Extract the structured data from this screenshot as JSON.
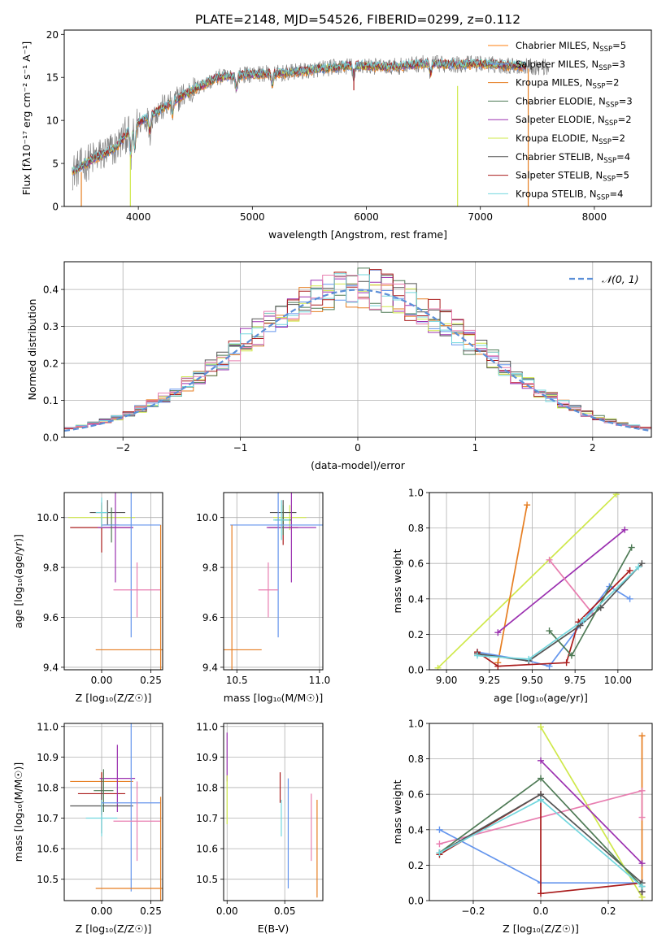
{
  "figure_title": "PLATE=2148, MJD=54526, FIBERID=0299, z=0.112",
  "colors": {
    "c1": "#ff7f0e",
    "c2": "#6495ed",
    "c3": "#e67e22",
    "c4": "#4e7a55",
    "c5": "#9b30b0",
    "c6": "#cfe84a",
    "c7": "#555555",
    "c8": "#aa1d1d",
    "c9": "#72d7de",
    "c10": "#e87eb0",
    "grey": "#7f7f7f"
  },
  "chart_data": [
    {
      "id": "spectrum",
      "type": "line",
      "xlabel": "wavelength [Angstrom, rest frame]",
      "ylabel": "Flux [fλ10⁻¹⁷ erg cm⁻² s⁻¹ A⁻¹]",
      "xlim": [
        3350,
        8500
      ],
      "ylim": [
        0,
        20.5
      ],
      "xticks": [
        4000,
        5000,
        6000,
        7000,
        8000
      ],
      "yticks": [
        0,
        5,
        10,
        15,
        20
      ],
      "legend": {
        "placement": "top-right",
        "entries": [
          {
            "label": "Chabrier MILES, N",
            "sub": "SSP",
            "tail": "=5",
            "color": "#ff7f0e"
          },
          {
            "label": "Salpeter MILES, N",
            "sub": "SSP",
            "tail": "=3",
            "color": "#6495ed"
          },
          {
            "label": "Kroupa MILES, N",
            "sub": "SSP",
            "tail": "=2",
            "color": "#e67e22"
          },
          {
            "label": "Chabrier ELODIE, N",
            "sub": "SSP",
            "tail": "=3",
            "color": "#4e7a55"
          },
          {
            "label": "Salpeter ELODIE, N",
            "sub": "SSP",
            "tail": "=2",
            "color": "#9b30b0"
          },
          {
            "label": "Kroupa ELODIE, N",
            "sub": "SSP",
            "tail": "=2",
            "color": "#cfe84a"
          },
          {
            "label": "Chabrier STELIB, N",
            "sub": "SSP",
            "tail": "=4",
            "color": "#555555"
          },
          {
            "label": "Salpeter STELIB, N",
            "sub": "SSP",
            "tail": "=5",
            "color": "#aa1d1d"
          },
          {
            "label": "Kroupa STELIB, N",
            "sub": "SSP",
            "tail": "=4",
            "color": "#72d7de"
          }
        ]
      },
      "continuum": {
        "x": [
          3420,
          3600,
          3800,
          3950,
          4100,
          4400,
          4700,
          5000,
          5300,
          5600,
          5900,
          6200,
          6500,
          6800,
          7000,
          7200,
          7400,
          7600
        ],
        "y": [
          4.0,
          5.5,
          6.8,
          9.3,
          10.5,
          13.0,
          15.0,
          15.4,
          15.5,
          16.0,
          16.4,
          16.2,
          16.6,
          16.5,
          16.6,
          16.4,
          16.3,
          16.2
        ]
      }
    },
    {
      "id": "residuals",
      "type": "histogram",
      "xlabel": "(data-model)/error",
      "ylabel": "Normed distribution",
      "xlim": [
        -2.5,
        2.5
      ],
      "ylim": [
        0,
        0.475
      ],
      "xticks": [
        -2,
        -1,
        0,
        1,
        2
      ],
      "yticks": [
        0.0,
        0.1,
        0.2,
        0.3,
        0.4
      ],
      "legend": {
        "placement": "top-right",
        "entries": [
          {
            "label": "𝒩(0, 1)",
            "color": "#5b8fd8"
          }
        ]
      }
    },
    {
      "id": "age_vs_z",
      "type": "scatter",
      "xlabel": "Z [log₁₀(Z/Z☉)]",
      "ylabel": "age  [log₁₀(age/yr)]",
      "xlim": [
        -0.19,
        0.31
      ],
      "ylim": [
        9.39,
        10.1
      ],
      "xticks": [
        0.0,
        0.25
      ],
      "xticklabels": [
        "0.00",
        "0.25"
      ],
      "yticks": [
        9.4,
        9.6,
        9.8,
        10.0
      ],
      "points": [
        {
          "x": 0.0,
          "y": 10.0,
          "xerr": 0.17,
          "yerr": 0.05,
          "color": "#cfe84a"
        },
        {
          "x": 0.03,
          "y": 10.02,
          "xerr": 0.09,
          "yerr": 0.05,
          "color": "#555555"
        },
        {
          "x": 0.0,
          "y": 9.96,
          "xerr": 0.16,
          "yerr": 0.1,
          "color": "#aa1d1d"
        },
        {
          "x": 0.07,
          "y": 9.96,
          "xerr": 0.09,
          "yerr": 0.22,
          "color": "#9b30b0"
        },
        {
          "x": 0.05,
          "y": 9.97,
          "xerr": 0.04,
          "yerr": 0.07,
          "color": "#4e7a55"
        },
        {
          "x": 0.0,
          "y": 10.02,
          "xerr": 0.03,
          "yerr": 0.06,
          "color": "#72d7de"
        },
        {
          "x": 0.15,
          "y": 9.97,
          "xerr": 0.15,
          "yerr": 0.45,
          "color": "#6495ed"
        },
        {
          "x": 0.18,
          "y": 9.71,
          "xerr": 0.12,
          "yerr": 0.11,
          "color": "#e87eb0"
        },
        {
          "x": 0.3,
          "y": 9.47,
          "xerr": 0.33,
          "yerr": 0.5,
          "color": "#e67e22"
        }
      ]
    },
    {
      "id": "age_vs_mass",
      "type": "scatter",
      "xlabel": "mass [log₁₀(M/M☉)]",
      "ylabel": "",
      "xlim": [
        10.42,
        11.02
      ],
      "ylim": [
        9.39,
        10.1
      ],
      "xticks": [
        10.5,
        11.0
      ],
      "xticklabels": [
        "10.5",
        "11.0"
      ],
      "yticks": [
        9.4,
        9.6,
        9.8,
        10.0
      ],
      "points": [
        {
          "x": 10.82,
          "y": 10.0,
          "xerr": 0.1,
          "yerr": 0.05,
          "color": "#cfe84a"
        },
        {
          "x": 10.78,
          "y": 10.02,
          "xerr": 0.08,
          "yerr": 0.05,
          "color": "#555555"
        },
        {
          "x": 10.78,
          "y": 9.96,
          "xerr": 0.09,
          "yerr": 0.07,
          "color": "#aa1d1d"
        },
        {
          "x": 10.83,
          "y": 9.96,
          "xerr": 0.15,
          "yerr": 0.22,
          "color": "#9b30b0"
        },
        {
          "x": 10.78,
          "y": 9.99,
          "xerr": 0.05,
          "yerr": 0.06,
          "color": "#4e7a55"
        },
        {
          "x": 10.77,
          "y": 9.99,
          "xerr": 0.05,
          "yerr": 0.08,
          "color": "#72d7de"
        },
        {
          "x": 10.75,
          "y": 9.97,
          "xerr": 0.29,
          "yerr": 0.45,
          "color": "#6495ed"
        },
        {
          "x": 10.69,
          "y": 9.71,
          "xerr": 0.06,
          "yerr": 0.11,
          "color": "#e87eb0"
        },
        {
          "x": 10.47,
          "y": 9.47,
          "xerr": 0.18,
          "yerr": 0.5,
          "color": "#e67e22"
        }
      ]
    },
    {
      "id": "weight_vs_age",
      "type": "line",
      "xlabel": "age  [log₁₀(age/yr)]",
      "ylabel": "mass weight",
      "xlim": [
        8.9,
        10.2
      ],
      "ylim": [
        0,
        1.0
      ],
      "xticks": [
        9.0,
        9.25,
        9.5,
        9.75,
        10.0
      ],
      "xticklabels": [
        "9.00",
        "9.25",
        "9.50",
        "9.75",
        "10.00"
      ],
      "yticks": [
        0.0,
        0.2,
        0.4,
        0.6,
        0.8,
        1.0
      ],
      "series": [
        {
          "color": "#cfe84a",
          "points": [
            [
              8.95,
              0.01
            ],
            [
              9.99,
              0.99
            ]
          ]
        },
        {
          "color": "#e67e22",
          "points": [
            [
              9.3,
              0.04
            ],
            [
              9.47,
              0.93
            ]
          ]
        },
        {
          "color": "#9b30b0",
          "points": [
            [
              9.3,
              0.21
            ],
            [
              10.04,
              0.79
            ]
          ]
        },
        {
          "color": "#e87eb0",
          "points": [
            [
              9.6,
              0.62
            ],
            [
              9.85,
              0.32
            ]
          ]
        },
        {
          "color": "#6495ed",
          "points": [
            [
              9.18,
              0.1
            ],
            [
              9.48,
              0.05
            ],
            [
              9.6,
              0.02
            ],
            [
              9.95,
              0.47
            ],
            [
              10.07,
              0.4
            ]
          ]
        },
        {
          "color": "#aa1d1d",
          "points": [
            [
              9.18,
              0.1
            ],
            [
              9.3,
              0.02
            ],
            [
              9.7,
              0.04
            ],
            [
              9.77,
              0.27
            ],
            [
              10.07,
              0.56
            ]
          ]
        },
        {
          "color": "#555555",
          "points": [
            [
              9.18,
              0.09
            ],
            [
              9.48,
              0.05
            ],
            [
              9.78,
              0.25
            ],
            [
              9.9,
              0.35
            ],
            [
              10.14,
              0.6
            ]
          ]
        },
        {
          "color": "#4e7a55",
          "points": [
            [
              9.6,
              0.22
            ],
            [
              9.73,
              0.08
            ],
            [
              10.08,
              0.69
            ]
          ]
        },
        {
          "color": "#72d7de",
          "points": [
            [
              9.18,
              0.08
            ],
            [
              9.48,
              0.06
            ],
            [
              9.8,
              0.28
            ],
            [
              10.12,
              0.58
            ]
          ]
        }
      ]
    },
    {
      "id": "mass_vs_z",
      "type": "scatter",
      "xlabel": "Z [log₁₀(Z/Z☉)]",
      "ylabel": "mass [log₁₀(M/M☉)]",
      "xlim": [
        -0.19,
        0.31
      ],
      "ylim": [
        10.43,
        11.01
      ],
      "xticks": [
        0.0,
        0.25
      ],
      "xticklabels": [
        "0.00",
        "0.25"
      ],
      "yticks": [
        10.5,
        10.6,
        10.7,
        10.8,
        10.9,
        11.0
      ],
      "points": [
        {
          "x": 0.0,
          "y": 10.82,
          "xerr": 0.16,
          "yerr": 0.03,
          "color": "#e67e22"
        },
        {
          "x": 0.0,
          "y": 10.78,
          "xerr": 0.12,
          "yerr": 0.07,
          "color": "#aa1d1d"
        },
        {
          "x": 0.08,
          "y": 10.83,
          "xerr": 0.09,
          "yerr": 0.11,
          "color": "#9b30b0"
        },
        {
          "x": 0.01,
          "y": 10.79,
          "xerr": 0.05,
          "yerr": 0.07,
          "color": "#4e7a55"
        },
        {
          "x": 0.0,
          "y": 10.74,
          "xerr": 0.16,
          "yerr": 0.09,
          "color": "#555555"
        },
        {
          "x": 0.0,
          "y": 10.7,
          "xerr": 0.08,
          "yerr": 0.06,
          "color": "#72d7de"
        },
        {
          "x": 0.15,
          "y": 10.75,
          "xerr": 0.15,
          "yerr": 0.29,
          "color": "#6495ed"
        },
        {
          "x": 0.18,
          "y": 10.69,
          "xerr": 0.12,
          "yerr": 0.13,
          "color": "#e87eb0"
        },
        {
          "x": 0.3,
          "y": 10.47,
          "xerr": 0.33,
          "yerr": 0.3,
          "color": "#e67e22"
        }
      ]
    },
    {
      "id": "mass_vs_ebv",
      "type": "scatter",
      "xlabel": "E(B-V)",
      "ylabel": "",
      "xlim": [
        -0.003,
        0.083
      ],
      "ylim": [
        10.43,
        11.01
      ],
      "xticks": [
        0.0,
        0.05
      ],
      "xticklabels": [
        "0.00",
        "0.05"
      ],
      "yticks": [
        10.5,
        10.6,
        10.7,
        10.8,
        10.9,
        11.0
      ],
      "points": [
        {
          "x": 0.0,
          "y": 10.9,
          "xerr": 0,
          "yerr": 0.08,
          "color": "#9b30b0"
        },
        {
          "x": 0.0,
          "y": 10.76,
          "xerr": 0,
          "yerr": 0.08,
          "color": "#cfe84a"
        },
        {
          "x": 0.046,
          "y": 10.8,
          "xerr": 0,
          "yerr": 0.05,
          "color": "#aa1d1d"
        },
        {
          "x": 0.047,
          "y": 10.7,
          "xerr": 0,
          "yerr": 0.06,
          "color": "#72d7de"
        },
        {
          "x": 0.053,
          "y": 10.65,
          "xerr": 0,
          "yerr": 0.18,
          "color": "#6495ed"
        },
        {
          "x": 0.073,
          "y": 10.67,
          "xerr": 0,
          "yerr": 0.11,
          "color": "#e87eb0"
        },
        {
          "x": 0.078,
          "y": 10.6,
          "xerr": 0,
          "yerr": 0.16,
          "color": "#e67e22"
        }
      ]
    },
    {
      "id": "weight_vs_z",
      "type": "line",
      "xlabel": "Z [log₁₀(Z/Z☉)]",
      "ylabel": "mass weight",
      "xlim": [
        -0.33,
        0.33
      ],
      "ylim": [
        0,
        1.0
      ],
      "xticks": [
        -0.2,
        0.0,
        0.2
      ],
      "xticklabels": [
        "−0.2",
        "0.0",
        "0.2"
      ],
      "yticks": [
        0.0,
        0.2,
        0.4,
        0.6,
        0.8,
        1.0
      ],
      "series": [
        {
          "color": "#e67e22",
          "points": [
            [
              0.3,
              0.93
            ],
            [
              0.3,
              0.02
            ]
          ]
        },
        {
          "color": "#cfe84a",
          "points": [
            [
              0.0,
              0.98
            ],
            [
              0.3,
              0.02
            ]
          ]
        },
        {
          "color": "#9b30b0",
          "points": [
            [
              0.0,
              0.79
            ],
            [
              0.3,
              0.21
            ]
          ]
        },
        {
          "color": "#e87eb0",
          "points": [
            [
              -0.3,
              0.32
            ],
            [
              0.3,
              0.62
            ],
            [
              0.3,
              0.47
            ]
          ]
        },
        {
          "color": "#6495ed",
          "points": [
            [
              -0.3,
              0.4
            ],
            [
              0.0,
              0.1
            ],
            [
              0.3,
              0.1
            ],
            [
              0.3,
              0.05
            ]
          ]
        },
        {
          "color": "#aa1d1d",
          "points": [
            [
              -0.3,
              0.26
            ],
            [
              0.0,
              0.6
            ],
            [
              0.0,
              0.04
            ],
            [
              0.3,
              0.1
            ],
            [
              0.3,
              0.05
            ]
          ]
        },
        {
          "color": "#555555",
          "points": [
            [
              -0.3,
              0.27
            ],
            [
              0.0,
              0.6
            ],
            [
              0.3,
              0.1
            ],
            [
              0.3,
              0.05
            ]
          ]
        },
        {
          "color": "#4e7a55",
          "points": [
            [
              -0.3,
              0.27
            ],
            [
              0.0,
              0.69
            ],
            [
              0.3,
              0.08
            ]
          ]
        },
        {
          "color": "#72d7de",
          "points": [
            [
              -0.3,
              0.27
            ],
            [
              0.0,
              0.57
            ],
            [
              0.3,
              0.08
            ]
          ]
        }
      ]
    }
  ]
}
